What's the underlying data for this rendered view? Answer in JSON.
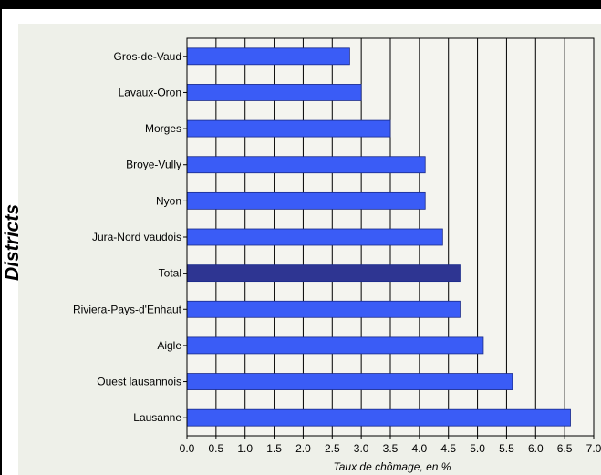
{
  "chart_data": {
    "type": "bar",
    "orientation": "horizontal",
    "categories": [
      "Gros-de-Vaud",
      "Lavaux-Oron",
      "Morges",
      "Broye-Vully",
      "Nyon",
      "Jura-Nord vaudois",
      "Total",
      "Riviera-Pays-d'Enhaut",
      "Aigle",
      "Ouest lausannois",
      "Lausanne"
    ],
    "values": [
      2.8,
      3.0,
      3.5,
      4.1,
      4.1,
      4.4,
      4.7,
      4.7,
      5.1,
      5.6,
      6.6
    ],
    "ylabel": "Districts",
    "xlabel": "Taux de chômage, en  %",
    "xlim": [
      0,
      7.0
    ],
    "xticks": [
      "0.0",
      "0.5",
      "1.0",
      "1.5",
      "2.0",
      "2.5",
      "3.0",
      "3.5",
      "4.0",
      "4.5",
      "5.0",
      "5.5",
      "6.0",
      "6.5",
      "7.0"
    ],
    "grid": "vertical",
    "colors": {
      "bar": "#3a5cf6",
      "highlight": "#2e3592",
      "bar_edge": "#1a2a8a",
      "plot_bg": "#f4f4ef"
    },
    "highlight_category": "Total"
  }
}
